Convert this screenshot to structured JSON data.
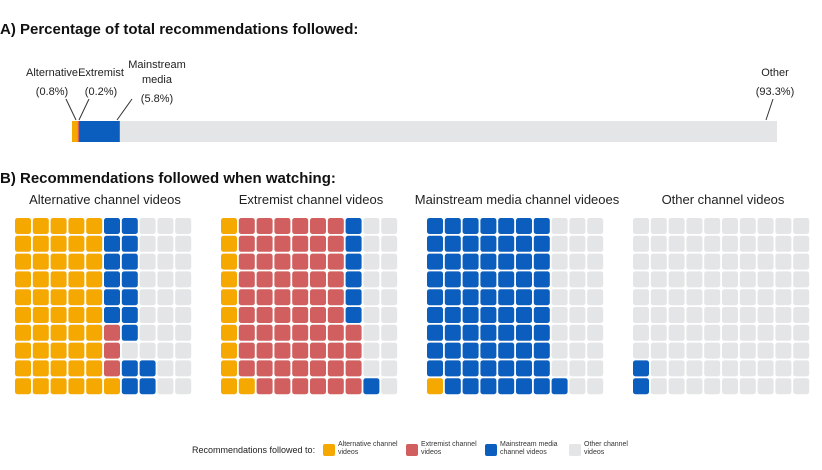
{
  "colors": {
    "alternative": "#F5A800",
    "extremist": "#D15F5F",
    "mainstream": "#0B5EBD",
    "other": "#E3E5E6"
  },
  "chart_data": [
    {
      "type": "bar",
      "orientation": "horizontal-stacked",
      "title": "A) Percentage of total recommendations followed:",
      "categories": [
        "Alternative",
        "Extremist",
        "Mainstream media",
        "Other"
      ],
      "values": [
        0.8,
        0.2,
        5.8,
        93.3
      ],
      "value_labels": [
        "(0.8%)",
        "(0.2%)",
        "(5.8%)",
        "(93.3%)"
      ],
      "display_labels": [
        [
          "Alternative"
        ],
        [
          "Extremist"
        ],
        [
          "Mainstream",
          "media"
        ],
        [
          "Other"
        ]
      ],
      "series_keys": [
        "alternative",
        "extremist",
        "mainstream",
        "other"
      ]
    },
    {
      "type": "waffle",
      "title": "B) Recommendations followed when watching:",
      "grid": {
        "rows": 10,
        "cols": 10
      },
      "panels": [
        {
          "name": "Alternative channel videos",
          "columns": [
            [
              "alternative",
              "alternative",
              "alternative",
              "alternative",
              "alternative",
              "alternative",
              "alternative",
              "alternative",
              "alternative",
              "alternative"
            ],
            [
              "alternative",
              "alternative",
              "alternative",
              "alternative",
              "alternative",
              "alternative",
              "alternative",
              "alternative",
              "alternative",
              "alternative"
            ],
            [
              "alternative",
              "alternative",
              "alternative",
              "alternative",
              "alternative",
              "alternative",
              "alternative",
              "alternative",
              "alternative",
              "alternative"
            ],
            [
              "alternative",
              "alternative",
              "alternative",
              "alternative",
              "alternative",
              "alternative",
              "alternative",
              "alternative",
              "alternative",
              "alternative"
            ],
            [
              "alternative",
              "alternative",
              "alternative",
              "alternative",
              "alternative",
              "alternative",
              "alternative",
              "alternative",
              "alternative",
              "alternative"
            ],
            [
              "mainstream",
              "mainstream",
              "mainstream",
              "mainstream",
              "mainstream",
              "mainstream",
              "extremist",
              "extremist",
              "extremist",
              "alternative"
            ],
            [
              "mainstream",
              "mainstream",
              "mainstream",
              "mainstream",
              "mainstream",
              "mainstream",
              "mainstream",
              "other",
              "mainstream",
              "mainstream"
            ],
            [
              "other",
              "other",
              "other",
              "other",
              "other",
              "other",
              "other",
              "other",
              "mainstream",
              "mainstream"
            ],
            [
              "other",
              "other",
              "other",
              "other",
              "other",
              "other",
              "other",
              "other",
              "other",
              "other"
            ],
            [
              "other",
              "other",
              "other",
              "other",
              "other",
              "other",
              "other",
              "other",
              "other",
              "other"
            ]
          ]
        },
        {
          "name": "Extremist channel videos",
          "columns": [
            [
              "alternative",
              "alternative",
              "alternative",
              "alternative",
              "alternative",
              "alternative",
              "alternative",
              "alternative",
              "alternative",
              "alternative"
            ],
            [
              "extremist",
              "extremist",
              "extremist",
              "extremist",
              "extremist",
              "extremist",
              "extremist",
              "extremist",
              "extremist",
              "alternative"
            ],
            [
              "extremist",
              "extremist",
              "extremist",
              "extremist",
              "extremist",
              "extremist",
              "extremist",
              "extremist",
              "extremist",
              "extremist"
            ],
            [
              "extremist",
              "extremist",
              "extremist",
              "extremist",
              "extremist",
              "extremist",
              "extremist",
              "extremist",
              "extremist",
              "extremist"
            ],
            [
              "extremist",
              "extremist",
              "extremist",
              "extremist",
              "extremist",
              "extremist",
              "extremist",
              "extremist",
              "extremist",
              "extremist"
            ],
            [
              "extremist",
              "extremist",
              "extremist",
              "extremist",
              "extremist",
              "extremist",
              "extremist",
              "extremist",
              "extremist",
              "extremist"
            ],
            [
              "extremist",
              "extremist",
              "extremist",
              "extremist",
              "extremist",
              "extremist",
              "extremist",
              "extremist",
              "extremist",
              "extremist"
            ],
            [
              "mainstream",
              "mainstream",
              "mainstream",
              "mainstream",
              "mainstream",
              "mainstream",
              "extremist",
              "extremist",
              "extremist",
              "extremist"
            ],
            [
              "other",
              "other",
              "other",
              "other",
              "other",
              "other",
              "other",
              "other",
              "other",
              "mainstream"
            ],
            [
              "other",
              "other",
              "other",
              "other",
              "other",
              "other",
              "other",
              "other",
              "other",
              "other"
            ]
          ]
        },
        {
          "name": "Mainstream media channel videoes",
          "columns": [
            [
              "mainstream",
              "mainstream",
              "mainstream",
              "mainstream",
              "mainstream",
              "mainstream",
              "mainstream",
              "mainstream",
              "mainstream",
              "alternative"
            ],
            [
              "mainstream",
              "mainstream",
              "mainstream",
              "mainstream",
              "mainstream",
              "mainstream",
              "mainstream",
              "mainstream",
              "mainstream",
              "mainstream"
            ],
            [
              "mainstream",
              "mainstream",
              "mainstream",
              "mainstream",
              "mainstream",
              "mainstream",
              "mainstream",
              "mainstream",
              "mainstream",
              "mainstream"
            ],
            [
              "mainstream",
              "mainstream",
              "mainstream",
              "mainstream",
              "mainstream",
              "mainstream",
              "mainstream",
              "mainstream",
              "mainstream",
              "mainstream"
            ],
            [
              "mainstream",
              "mainstream",
              "mainstream",
              "mainstream",
              "mainstream",
              "mainstream",
              "mainstream",
              "mainstream",
              "mainstream",
              "mainstream"
            ],
            [
              "mainstream",
              "mainstream",
              "mainstream",
              "mainstream",
              "mainstream",
              "mainstream",
              "mainstream",
              "mainstream",
              "mainstream",
              "mainstream"
            ],
            [
              "mainstream",
              "mainstream",
              "mainstream",
              "mainstream",
              "mainstream",
              "mainstream",
              "mainstream",
              "mainstream",
              "mainstream",
              "mainstream"
            ],
            [
              "other",
              "other",
              "other",
              "other",
              "other",
              "other",
              "other",
              "other",
              "other",
              "mainstream"
            ],
            [
              "other",
              "other",
              "other",
              "other",
              "other",
              "other",
              "other",
              "other",
              "other",
              "other"
            ],
            [
              "other",
              "other",
              "other",
              "other",
              "other",
              "other",
              "other",
              "other",
              "other",
              "other"
            ]
          ]
        },
        {
          "name": "Other channel videos",
          "columns": [
            [
              "other",
              "other",
              "other",
              "other",
              "other",
              "other",
              "other",
              "other",
              "mainstream",
              "mainstream"
            ],
            [
              "other",
              "other",
              "other",
              "other",
              "other",
              "other",
              "other",
              "other",
              "other",
              "other"
            ],
            [
              "other",
              "other",
              "other",
              "other",
              "other",
              "other",
              "other",
              "other",
              "other",
              "other"
            ],
            [
              "other",
              "other",
              "other",
              "other",
              "other",
              "other",
              "other",
              "other",
              "other",
              "other"
            ],
            [
              "other",
              "other",
              "other",
              "other",
              "other",
              "other",
              "other",
              "other",
              "other",
              "other"
            ],
            [
              "other",
              "other",
              "other",
              "other",
              "other",
              "other",
              "other",
              "other",
              "other",
              "other"
            ],
            [
              "other",
              "other",
              "other",
              "other",
              "other",
              "other",
              "other",
              "other",
              "other",
              "other"
            ],
            [
              "other",
              "other",
              "other",
              "other",
              "other",
              "other",
              "other",
              "other",
              "other",
              "other"
            ],
            [
              "other",
              "other",
              "other",
              "other",
              "other",
              "other",
              "other",
              "other",
              "other",
              "other"
            ],
            [
              "other",
              "other",
              "other",
              "other",
              "other",
              "other",
              "other",
              "other",
              "other",
              "other"
            ]
          ]
        }
      ]
    }
  ],
  "legend": {
    "title": "Recommendations followed to:",
    "items": [
      {
        "key": "alternative",
        "label": "Alternative channel\nvideos"
      },
      {
        "key": "extremist",
        "label": "Extremist channel\nvideos"
      },
      {
        "key": "mainstream",
        "label": "Mainstream media\nchannel videos"
      },
      {
        "key": "other",
        "label": "Other channel\nvideos"
      }
    ]
  }
}
